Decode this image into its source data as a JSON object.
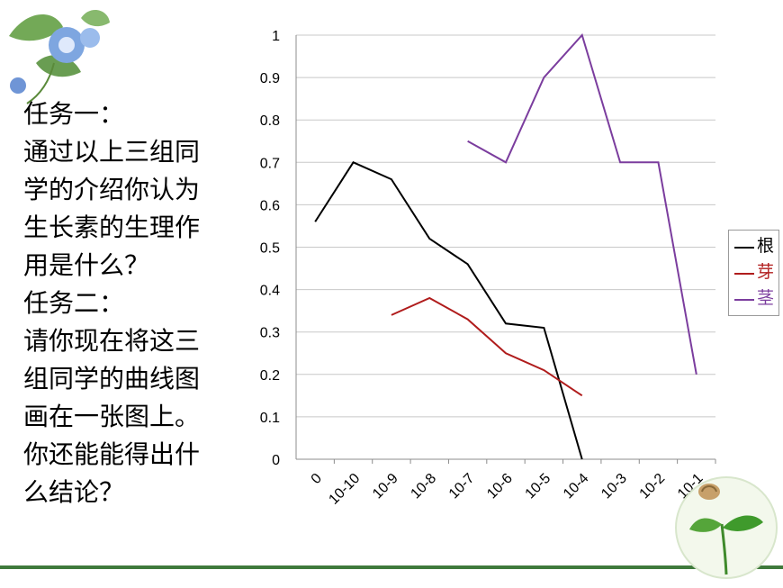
{
  "task_text": {
    "task1_heading": "任务一：",
    "task1_lines": [
      "通过以上三组同",
      "学的介绍你认为",
      "生长素的生理作",
      "用是什么？"
    ],
    "task2_heading": "任务二：",
    "task2_lines": [
      "请你现在将这三",
      "组同学的曲线图",
      "画在一张图上。",
      "你还能能得出什",
      "么结论？"
    ]
  },
  "chart_data": {
    "type": "line",
    "categories": [
      "0",
      "10-10",
      "10-9",
      "10-8",
      "10-7",
      "10-6",
      "10-5",
      "10-4",
      "10-3",
      "10-2",
      "10-1"
    ],
    "ylim": [
      0,
      1
    ],
    "yticks": [
      "0",
      "0.1",
      "0.2",
      "0.3",
      "0.4",
      "0.5",
      "0.6",
      "0.7",
      "0.8",
      "0.9",
      "1"
    ],
    "grid": true,
    "legend_position": "right",
    "series": [
      {
        "name": "根",
        "color": "#000000",
        "values": [
          0.56,
          0.7,
          0.66,
          0.52,
          0.46,
          0.32,
          0.31,
          0.0,
          null,
          null,
          null
        ]
      },
      {
        "name": "芽",
        "color": "#b01c1c",
        "values": [
          null,
          null,
          0.34,
          0.38,
          0.33,
          0.25,
          0.21,
          0.15,
          null,
          null,
          null
        ]
      },
      {
        "name": "茎",
        "color": "#7b3d9e",
        "values": [
          null,
          null,
          null,
          null,
          0.75,
          0.7,
          0.9,
          1.0,
          0.7,
          0.7,
          0.2
        ]
      }
    ]
  }
}
